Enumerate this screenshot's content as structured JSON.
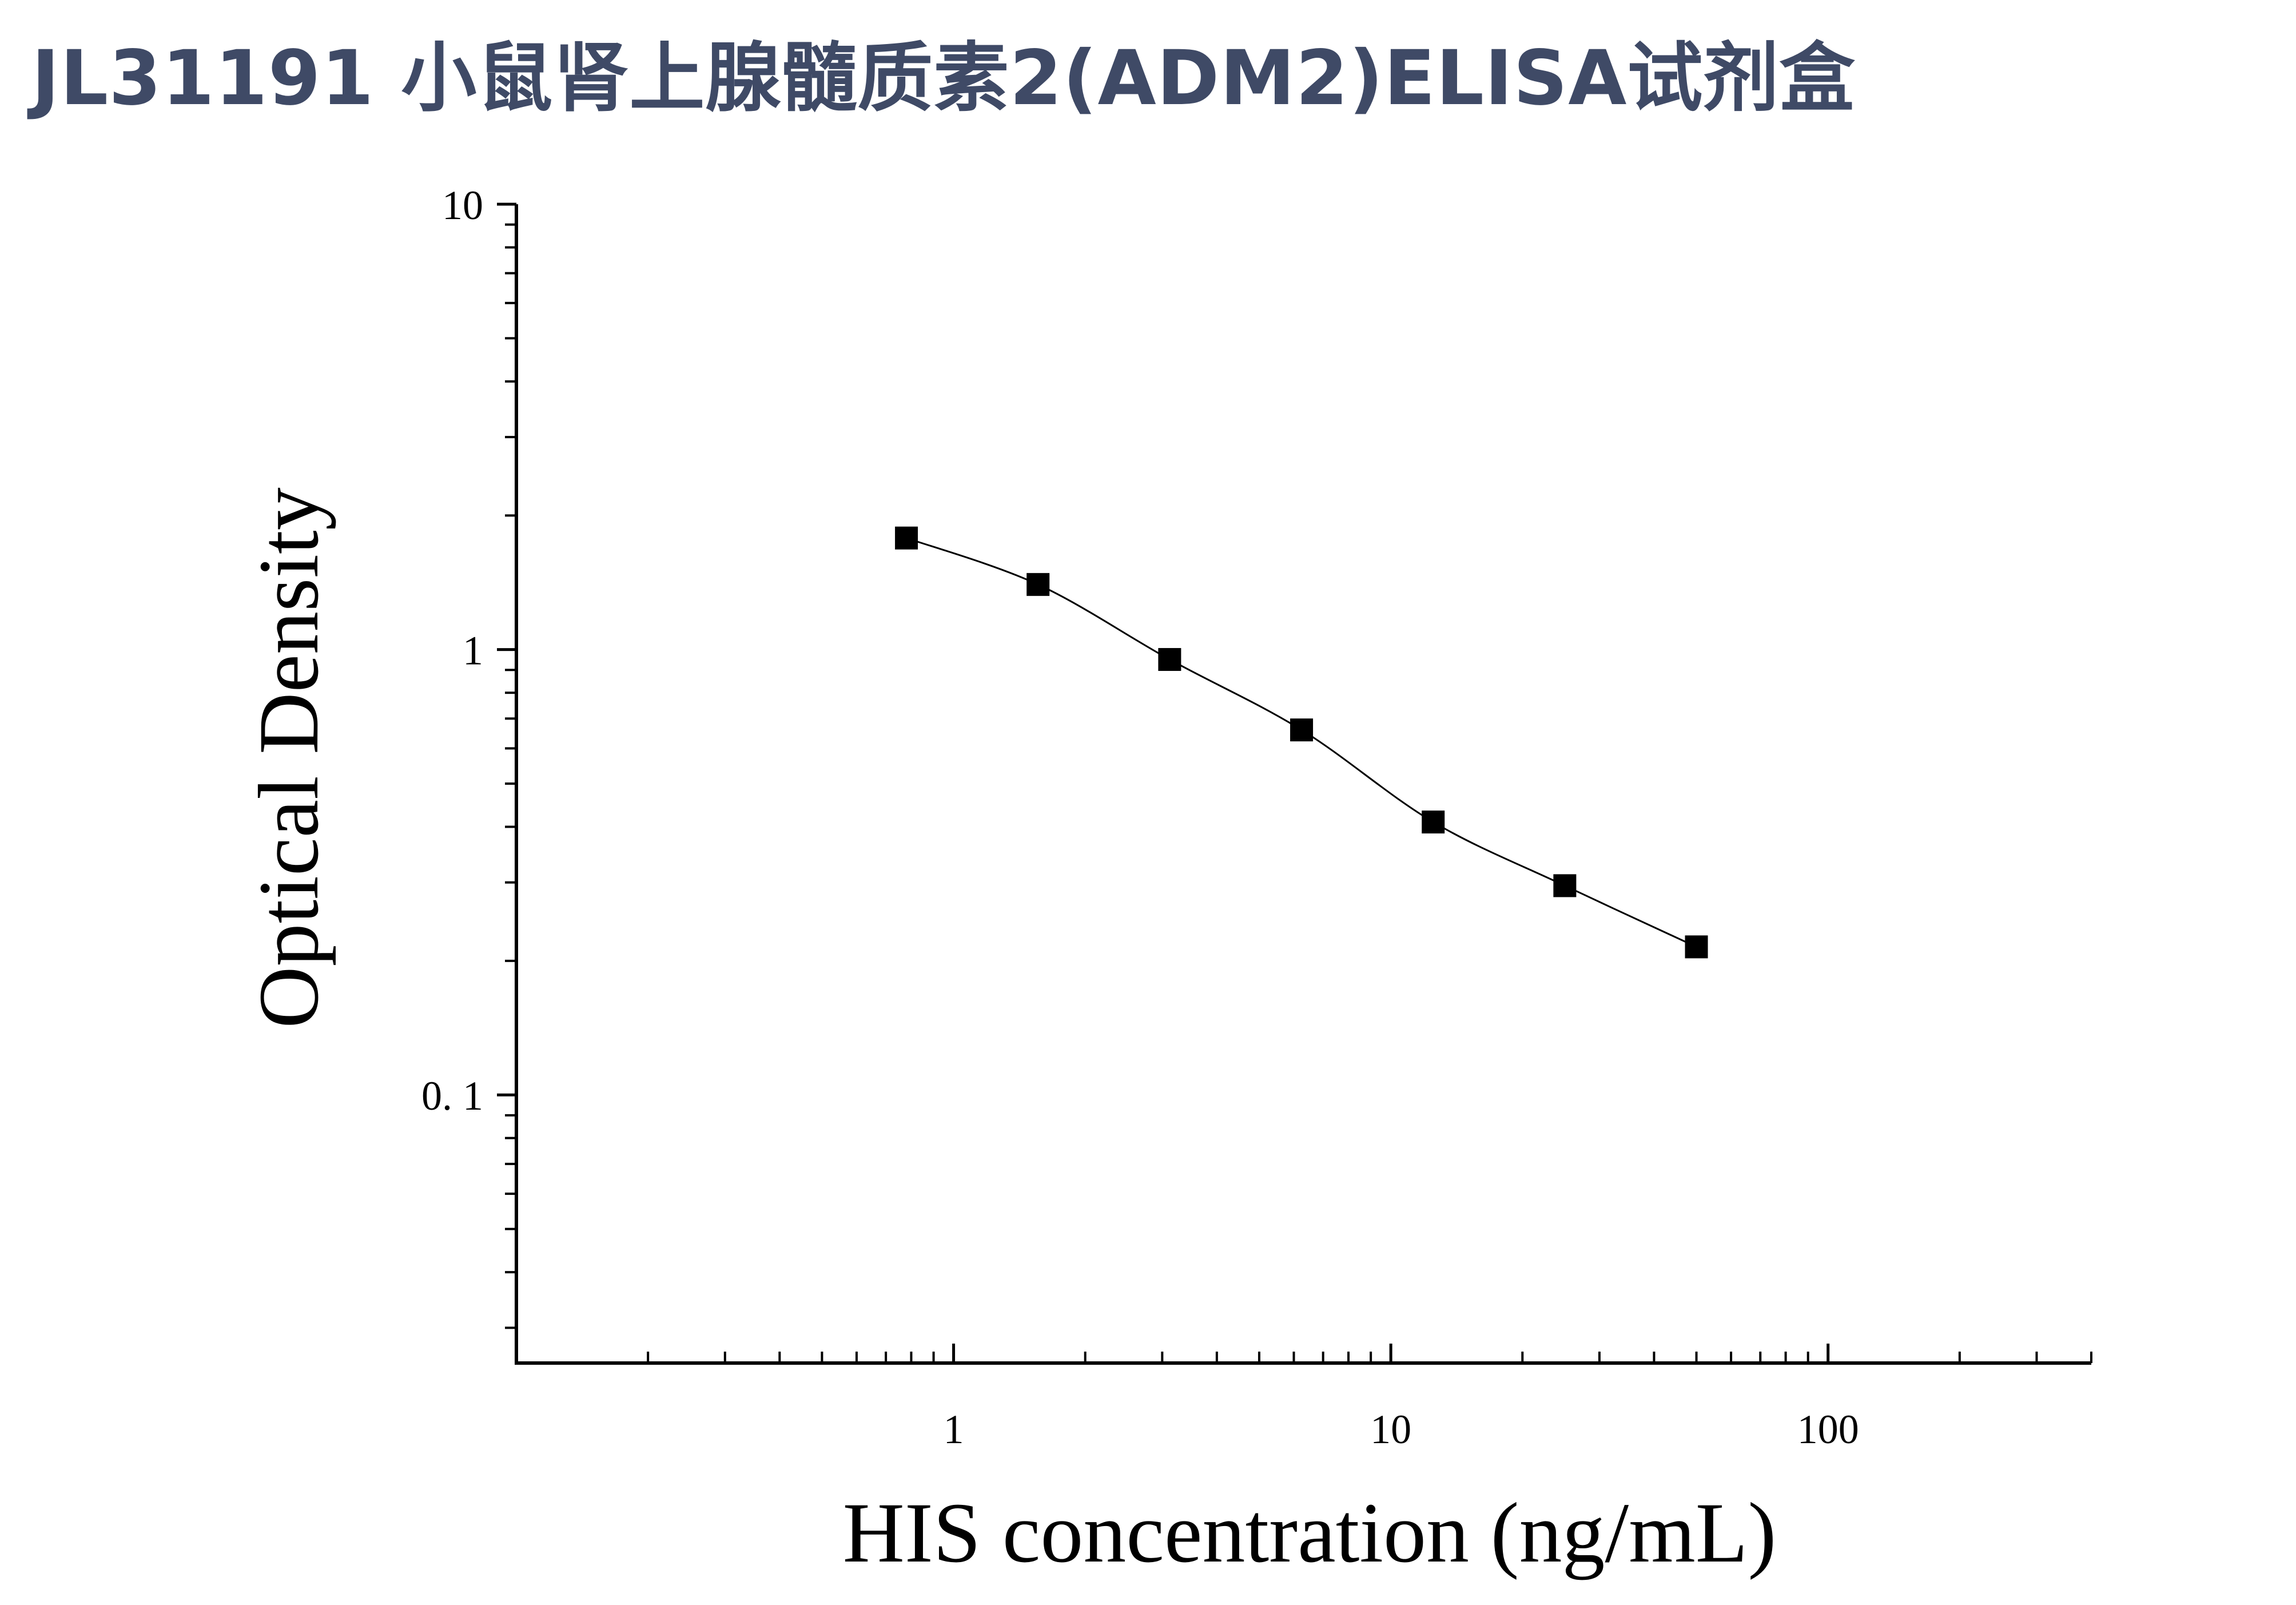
{
  "title": "JL31191 小鼠肾上腺髓质素2(ADM2)ELISA试剂盒",
  "colors": {
    "title": "#3f4a66",
    "ink": "#000000"
  },
  "chart_data": {
    "type": "scatter",
    "xlabel": "HIS concentration (ng/mL)",
    "ylabel": "Optical Density",
    "xscale": "log",
    "yscale": "log",
    "xlim": [
      0.1,
      400
    ],
    "ylim": [
      0.025,
      10
    ],
    "xticks": [
      {
        "value": 1,
        "label": "1"
      },
      {
        "value": 10,
        "label": "10"
      },
      {
        "value": 100,
        "label": "100"
      }
    ],
    "yticks": [
      {
        "value": 0.1,
        "label": "0. 1"
      },
      {
        "value": 1,
        "label": "1"
      },
      {
        "value": 10,
        "label": "10"
      }
    ],
    "grid": false,
    "legend": "none",
    "series": [
      {
        "marker": "square",
        "fit": "4PL",
        "points": [
          {
            "x": 0.78,
            "y": 1.78
          },
          {
            "x": 1.56,
            "y": 1.4
          },
          {
            "x": 3.12,
            "y": 0.95
          },
          {
            "x": 6.25,
            "y": 0.66
          },
          {
            "x": 12.5,
            "y": 0.41
          },
          {
            "x": 25,
            "y": 0.295
          },
          {
            "x": 50,
            "y": 0.215
          }
        ]
      }
    ]
  }
}
